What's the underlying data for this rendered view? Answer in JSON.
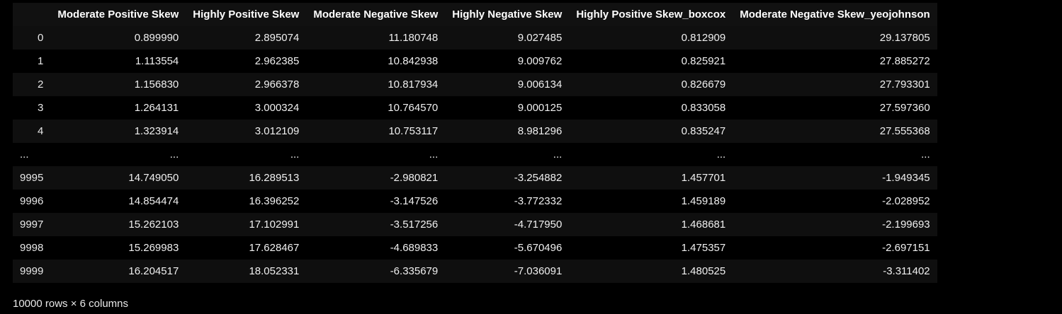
{
  "table": {
    "columns": [
      "Moderate Positive Skew",
      "Highly Positive Skew",
      "Moderate Negative Skew",
      "Highly Negative Skew",
      "Highly Positive Skew_boxcox",
      "Moderate Negative Skew_yeojohnson"
    ],
    "rows": [
      {
        "index": "0",
        "values": [
          "0.899990",
          "2.895074",
          "11.180748",
          "9.027485",
          "0.812909",
          "29.137805"
        ]
      },
      {
        "index": "1",
        "values": [
          "1.113554",
          "2.962385",
          "10.842938",
          "9.009762",
          "0.825921",
          "27.885272"
        ]
      },
      {
        "index": "2",
        "values": [
          "1.156830",
          "2.966378",
          "10.817934",
          "9.006134",
          "0.826679",
          "27.793301"
        ]
      },
      {
        "index": "3",
        "values": [
          "1.264131",
          "3.000324",
          "10.764570",
          "9.000125",
          "0.833058",
          "27.597360"
        ]
      },
      {
        "index": "4",
        "values": [
          "1.323914",
          "3.012109",
          "10.753117",
          "8.981296",
          "0.835247",
          "27.555368"
        ]
      },
      {
        "index": "...",
        "values": [
          "...",
          "...",
          "...",
          "...",
          "...",
          "..."
        ]
      },
      {
        "index": "9995",
        "values": [
          "14.749050",
          "16.289513",
          "-2.980821",
          "-3.254882",
          "1.457701",
          "-1.949345"
        ]
      },
      {
        "index": "9996",
        "values": [
          "14.854474",
          "16.396252",
          "-3.147526",
          "-3.772332",
          "1.459189",
          "-2.028952"
        ]
      },
      {
        "index": "9997",
        "values": [
          "15.262103",
          "17.102991",
          "-3.517256",
          "-4.717950",
          "1.468681",
          "-2.199693"
        ]
      },
      {
        "index": "9998",
        "values": [
          "15.269983",
          "17.628467",
          "-4.689833",
          "-5.670496",
          "1.475357",
          "-2.697151"
        ]
      },
      {
        "index": "9999",
        "values": [
          "16.204517",
          "18.052331",
          "-6.335679",
          "-7.036091",
          "1.480525",
          "-3.311402"
        ]
      }
    ]
  },
  "footer": {
    "shape_text": "10000 rows × 6 columns"
  }
}
